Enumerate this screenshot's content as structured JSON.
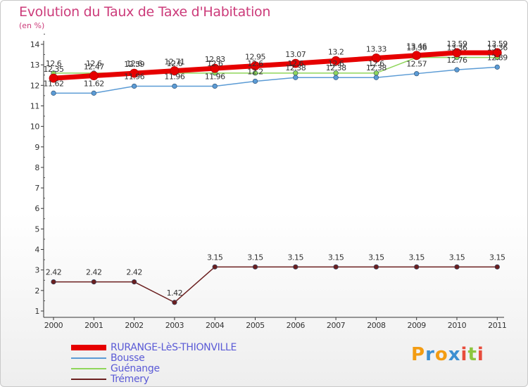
{
  "chart_data": {
    "type": "line",
    "title": "Evolution du Taux de Taxe d'Habitation",
    "unit_label": "(en %)",
    "x": [
      "2000",
      "2001",
      "2002",
      "2003",
      "2004",
      "2005",
      "2006",
      "2007",
      "2008",
      "2009",
      "2010",
      "2011"
    ],
    "ylim": [
      1,
      14
    ],
    "yticks": [
      "1",
      "2",
      "3",
      "4",
      "5",
      "6",
      "7",
      "8",
      "9",
      "10",
      "11",
      "12",
      "13",
      "14"
    ],
    "grid": false,
    "legend_position": "bottom-left",
    "series": [
      {
        "name": "RURANGE-LèS-THIONVILLE",
        "color": "#e60000",
        "values": [
          12.35,
          12.47,
          12.59,
          12.71,
          12.83,
          12.95,
          13.07,
          13.2,
          13.33,
          13.46,
          13.59,
          13.59
        ],
        "labels": [
          "12.35",
          "12.47",
          "12.59",
          "12.71",
          "12.83",
          "12.95",
          "13.07",
          "13.2",
          "13.33",
          "13.46",
          "13.59",
          "13.59"
        ]
      },
      {
        "name": "Bousse",
        "color": "#5b9bd5",
        "values": [
          11.62,
          11.62,
          11.96,
          11.96,
          11.96,
          12.2,
          12.38,
          12.38,
          12.38,
          12.57,
          12.76,
          12.89
        ],
        "labels": [
          "11.62",
          "11.62",
          "11.96",
          "11.96",
          "11.96",
          "12.2",
          "12.38",
          "12.38",
          "12.38",
          "12.57",
          "12.76",
          "12.89"
        ]
      },
      {
        "name": "Guénange",
        "color": "#8fd65a",
        "values": [
          12.6,
          12.6,
          12.6,
          12.6,
          12.6,
          12.6,
          12.6,
          12.6,
          12.6,
          13.36,
          13.36,
          13.36
        ],
        "labels": [
          "12.6",
          "12.6",
          "12.6",
          "12.6",
          "12.6",
          "12.6",
          "12.6",
          "12.6",
          "12.6",
          "13.36",
          "13.36",
          "13.36"
        ]
      },
      {
        "name": "Trémery",
        "color": "#6b1f1f",
        "values": [
          2.42,
          2.42,
          2.42,
          1.42,
          3.15,
          3.15,
          3.15,
          3.15,
          3.15,
          3.15,
          3.15,
          3.15
        ],
        "labels": [
          "2.42",
          "2.42",
          "2.42",
          "1.42",
          "3.15",
          "3.15",
          "3.15",
          "3.15",
          "3.15",
          "3.15",
          "3.15",
          "3.15"
        ]
      }
    ]
  },
  "logo": {
    "letters": [
      "P",
      "r",
      "o",
      "x",
      "i",
      "t",
      "i"
    ],
    "colors": [
      "#f39c12",
      "#3d8fd1",
      "#f39c12",
      "#3d8fd1",
      "#e74c3c",
      "#8cc63f",
      "#e74c3c"
    ]
  }
}
